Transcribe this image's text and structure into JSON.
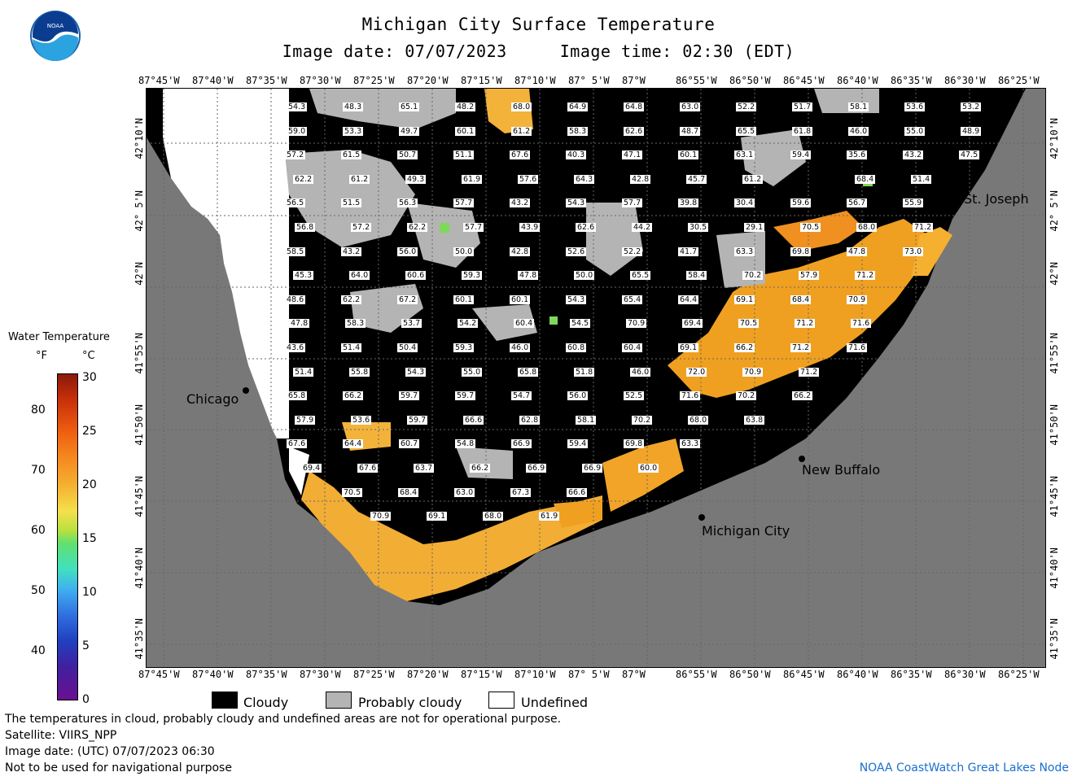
{
  "header": {
    "title": "Michigan City Surface Temperature",
    "date_line": "Image date: 07/07/2023",
    "time_line": "Image time: 02:30 (EDT)"
  },
  "logo": {
    "text": "NOAA"
  },
  "axes": {
    "x_ticks": [
      "87°45'W",
      "87°40'W",
      "87°35'W",
      "87°30'W",
      "87°25'W",
      "87°20'W",
      "87°15'W",
      "87°10'W",
      "87° 5'W",
      "87°W",
      "86°55'W",
      "86°50'W",
      "86°45'W",
      "86°40'W",
      "86°35'W",
      "86°30'W",
      "86°25'W"
    ],
    "y_ticks": [
      "42°10'N",
      "42° 5'N",
      "42°N",
      "41°55'N",
      "41°50'N",
      "41°45'N",
      "41°40'N",
      "41°35'N"
    ]
  },
  "places": {
    "chicago": "Chicago",
    "st_joseph": "St. Joseph",
    "new_buffalo": "New Buffalo",
    "michigan_city": "Michigan City"
  },
  "colorbar": {
    "title": "Water Temperature",
    "unit_f": "°F",
    "unit_c": "°C",
    "f_ticks": [
      "80",
      "70",
      "60",
      "50",
      "40"
    ],
    "c_ticks": [
      "30",
      "25",
      "20",
      "15",
      "10",
      "5",
      "0"
    ]
  },
  "legend": {
    "cloudy": "Cloudy",
    "probably_cloudy": "Probably cloudy",
    "undefined": "Undefined",
    "colors": {
      "cloudy": "#000000",
      "probably_cloudy": "#b4b4b4",
      "undefined": "#ffffff",
      "land": "#787878"
    }
  },
  "footer": {
    "line1": "The temperatures in cloud, probably cloudy and undefined areas are not for operational purpose.",
    "line2": "Satellite: VIIRS_NPP",
    "line3": "Image date: (UTC) 07/07/2023  06:30",
    "line4": "Not to be used for navigational purpose",
    "credit": "NOAA CoastWatch Great Lakes Node"
  },
  "temperature_labels": [
    [
      "54.3",
      "48.3",
      "65.1",
      "48.2",
      "68.0",
      "64.9",
      "64.8",
      "63.0",
      "52.2",
      "51.7",
      "58.1",
      "53.6",
      "53.2"
    ],
    [
      "59.0",
      "53.3",
      "49.7",
      "60.1",
      "61.2",
      "58.3",
      "62.6",
      "48.7",
      "65.5",
      "61.8",
      "46.0",
      "55.0",
      "48.9"
    ],
    [
      "57.2",
      "61.5",
      "50.7",
      "51.1",
      "67.6",
      "40.3",
      "47.1",
      "60.1",
      "63.1",
      "59.4",
      "35.6",
      "43.2",
      "47.5"
    ],
    [
      "62.2",
      "61.2",
      "49.3",
      "61.9",
      "57.6",
      "64.3",
      "42.8",
      "45.7",
      "61.2",
      "",
      "68.4",
      "51.4"
    ],
    [
      "56.5",
      "51.5",
      "56.3",
      "57.7",
      "43.2",
      "54.3",
      "57.7",
      "39.8",
      "30.4",
      "59.6",
      "56.7",
      "55.9"
    ],
    [
      "56.8",
      "57.2",
      "62.2",
      "57.7",
      "43.9",
      "62.6",
      "44.2",
      "30.5",
      "29.1",
      "70.5",
      "68.0",
      "71.2"
    ],
    [
      "58.5",
      "43.2",
      "56.0",
      "50.0",
      "42.8",
      "52.6",
      "52.2",
      "41.7",
      "63.3",
      "69.8",
      "47.8",
      "73.0"
    ],
    [
      "45.3",
      "64.0",
      "60.6",
      "59.3",
      "47.8",
      "50.0",
      "65.5",
      "58.4",
      "70.2",
      "57.9",
      "71.2"
    ],
    [
      "48.6",
      "62.2",
      "67.2",
      "60.1",
      "60.1",
      "54.3",
      "65.4",
      "64.4",
      "69.1",
      "68.4",
      "70.9"
    ],
    [
      "47.8",
      "58.3",
      "53.7",
      "54.2",
      "60.4",
      "54.5",
      "70.9",
      "69.4",
      "70.5",
      "71.2",
      "71.6"
    ],
    [
      "43.6",
      "51.4",
      "50.4",
      "59.3",
      "46.0",
      "60.8",
      "60.4",
      "69.1",
      "66.2",
      "71.2",
      "71.6"
    ],
    [
      "51.4",
      "55.8",
      "54.3",
      "55.0",
      "65.8",
      "51.8",
      "46.0",
      "72.0",
      "70.9",
      "71.2"
    ],
    [
      "65.8",
      "66.2",
      "59.7",
      "59.7",
      "54.7",
      "56.0",
      "52.5",
      "71.6",
      "70.2",
      "66.2"
    ],
    [
      "57.9",
      "53.6",
      "59.7",
      "66.6",
      "62.8",
      "58.1",
      "70.2",
      "68.0",
      "63.8"
    ],
    [
      "67.6",
      "64.4",
      "60.7",
      "54.8",
      "66.9",
      "59.4",
      "69.8",
      "63.3"
    ],
    [
      "69.4",
      "67.6",
      "63.7",
      "66.2",
      "66.9",
      "66.9",
      "60.0"
    ],
    [
      "70.5",
      "68.4",
      "63.0",
      "67.3",
      "66.6"
    ],
    [
      "70.9",
      "69.1",
      "68.0",
      "61.9"
    ]
  ]
}
